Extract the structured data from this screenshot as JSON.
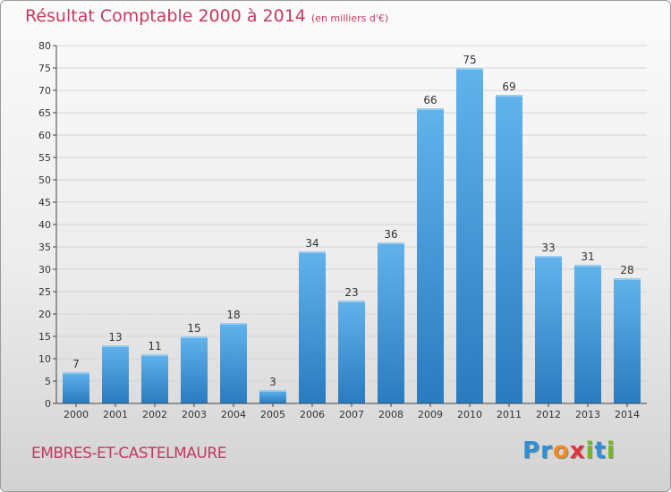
{
  "header": {
    "title": "Résultat Comptable 2000 à 2014",
    "subtitle": "(en milliers d'€)"
  },
  "footer": {
    "commune": "EMBRES-ET-CASTELMAURE",
    "logo_letters": [
      {
        "char": "P",
        "color": "#2e8fd6"
      },
      {
        "char": "r",
        "color": "#2e8fd6"
      },
      {
        "char": "o",
        "color": "#f28a1c"
      },
      {
        "char": "x",
        "color": "#e3323b"
      },
      {
        "char": "i",
        "color": "#77b82a"
      },
      {
        "char": "t",
        "color": "#2e8fd6"
      },
      {
        "char": "i",
        "color": "#77b82a"
      }
    ]
  },
  "colors": {
    "bar_light": "#62b2ec",
    "bar_dark": "#2a7bbf",
    "grid": "#d4d4d4",
    "axis": "#444444",
    "accent": "#c33a5e"
  },
  "chart_data": {
    "type": "bar",
    "title": "Résultat Comptable 2000 à 2014",
    "subtitle": "(en milliers d'€)",
    "categories": [
      "2000",
      "2001",
      "2002",
      "2003",
      "2004",
      "2005",
      "2006",
      "2007",
      "2008",
      "2009",
      "2010",
      "2011",
      "2012",
      "2013",
      "2014"
    ],
    "values": [
      7,
      13,
      11,
      15,
      18,
      3,
      34,
      23,
      36,
      66,
      75,
      69,
      33,
      31,
      28
    ],
    "ylim": [
      0,
      80
    ],
    "yticks": [
      0,
      5,
      10,
      15,
      20,
      25,
      30,
      35,
      40,
      45,
      50,
      55,
      60,
      65,
      70,
      75,
      80
    ],
    "grid": true,
    "xlabel": "",
    "ylabel": ""
  }
}
